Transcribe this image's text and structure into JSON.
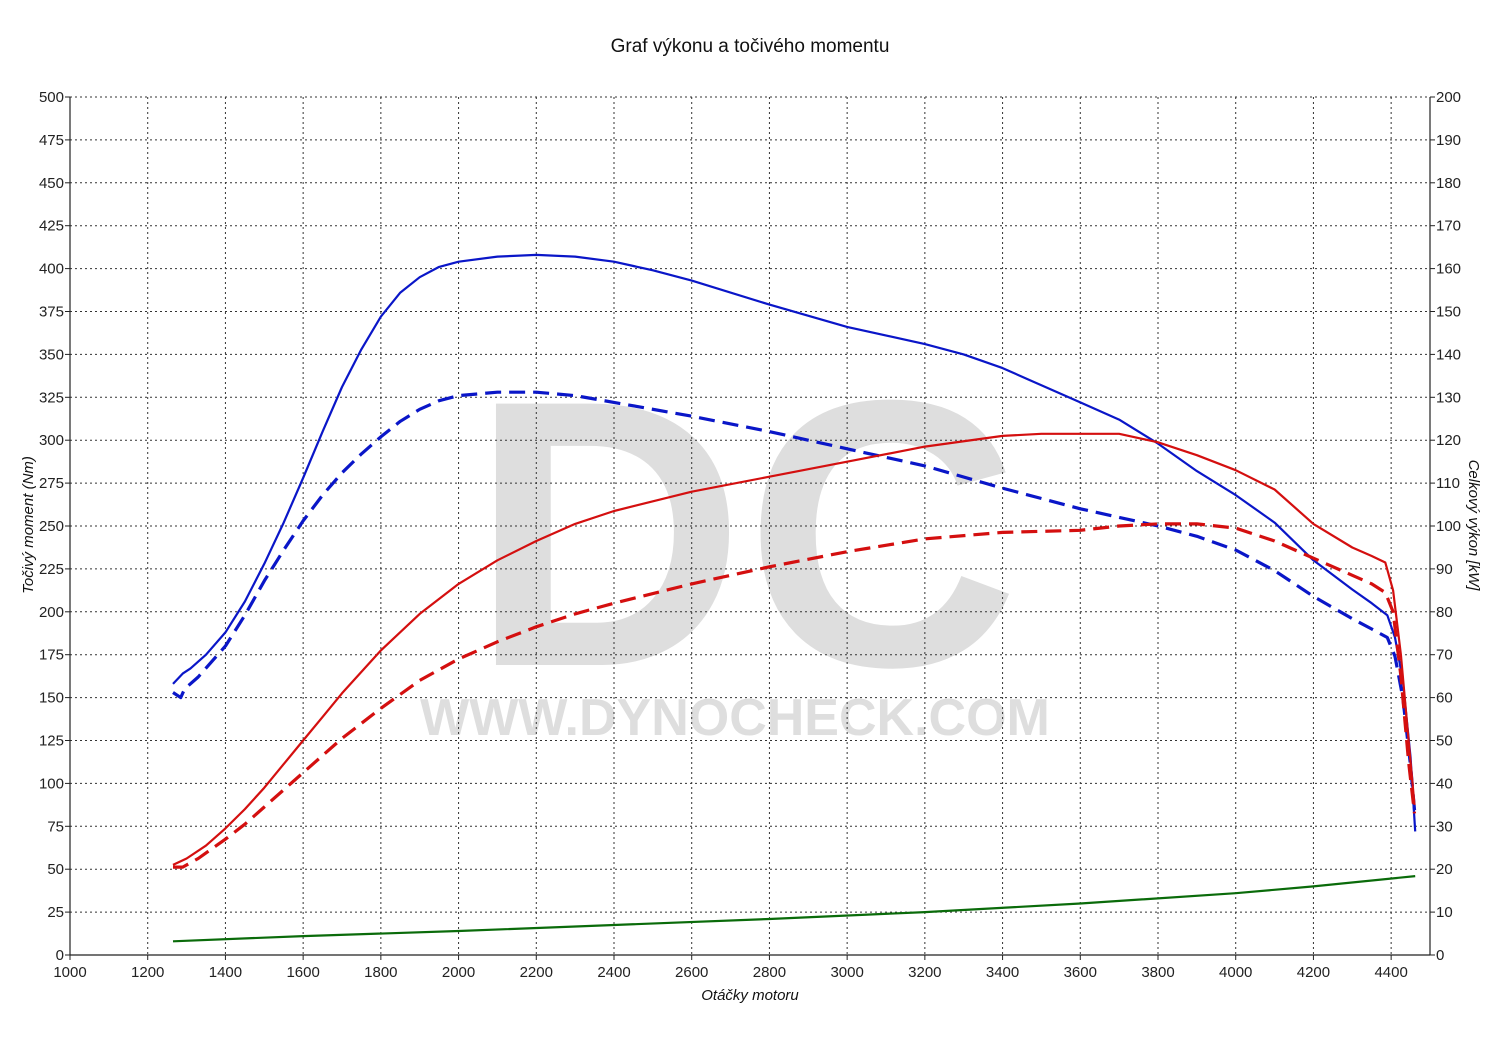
{
  "chart_data": {
    "type": "line",
    "title": "Graf výkonu a točivého momentu",
    "xlabel": "Otáčky motoru",
    "ylabel_left": "Točivý moment (Nm)",
    "ylabel_right": "Celkový výkon [kW]",
    "xlim": [
      1000,
      4500
    ],
    "ylim_left": [
      0,
      500
    ],
    "ylim_right": [
      0,
      200
    ],
    "x_ticks": [
      1000,
      1200,
      1400,
      1600,
      1800,
      2000,
      2200,
      2400,
      2600,
      2800,
      3000,
      3200,
      3400,
      3600,
      3800,
      4000,
      4200,
      4400
    ],
    "y_left_ticks": [
      0,
      25,
      50,
      75,
      100,
      125,
      150,
      175,
      200,
      225,
      250,
      275,
      300,
      325,
      350,
      375,
      400,
      425,
      450,
      475,
      500
    ],
    "y_right_ticks": [
      0,
      10,
      20,
      30,
      40,
      50,
      60,
      70,
      80,
      90,
      100,
      110,
      120,
      130,
      140,
      150,
      160,
      170,
      180,
      190,
      200
    ],
    "grid": true,
    "watermark": {
      "logo": "DC",
      "text": "WWW.DYNOCHECK.COM"
    },
    "series": [
      {
        "axis": "left",
        "color": "#0a16c8",
        "dash": false,
        "x": [
          1265,
          1290,
          1310,
          1350,
          1400,
          1450,
          1500,
          1550,
          1600,
          1650,
          1700,
          1750,
          1800,
          1850,
          1900,
          1950,
          2000,
          2100,
          2200,
          2300,
          2400,
          2500,
          2600,
          2800,
          3000,
          3200,
          3300,
          3400,
          3500,
          3600,
          3700,
          3800,
          3900,
          4000,
          4100,
          4200,
          4300,
          4350,
          4390,
          4410,
          4430,
          4450,
          4462
        ],
        "values": [
          158,
          164,
          167,
          175,
          188,
          206,
          228,
          252,
          278,
          305,
          331,
          353,
          372,
          386,
          395,
          401,
          404,
          407,
          408,
          407,
          404,
          399,
          393,
          379,
          366,
          356,
          350,
          342,
          332,
          322,
          312,
          298,
          282,
          268,
          252,
          230,
          213,
          205,
          198,
          185,
          160,
          115,
          72
        ]
      },
      {
        "axis": "left",
        "color": "#0a16c8",
        "dash": true,
        "x": [
          1265,
          1285,
          1295,
          1330,
          1400,
          1450,
          1500,
          1550,
          1600,
          1650,
          1700,
          1750,
          1800,
          1850,
          1900,
          1950,
          2000,
          2100,
          2200,
          2300,
          2400,
          2600,
          2800,
          3000,
          3200,
          3400,
          3600,
          3800,
          3900,
          4000,
          4100,
          4200,
          4300,
          4350,
          4390,
          4410,
          4430,
          4450,
          4462
        ],
        "values": [
          153,
          150,
          155,
          162,
          180,
          198,
          218,
          236,
          253,
          268,
          281,
          292,
          302,
          311,
          318,
          323,
          326,
          328,
          328,
          326,
          322,
          314,
          305,
          295,
          285,
          272,
          260,
          250,
          244,
          236,
          224,
          209,
          196,
          190,
          185,
          174,
          150,
          110,
          80
        ]
      },
      {
        "axis": "right",
        "color": "#d40f0f",
        "dash": false,
        "x": [
          1265,
          1300,
          1350,
          1400,
          1450,
          1500,
          1550,
          1600,
          1650,
          1700,
          1800,
          1900,
          2000,
          2100,
          2200,
          2300,
          2400,
          2600,
          2800,
          3000,
          3200,
          3400,
          3500,
          3600,
          3700,
          3800,
          3900,
          4000,
          4100,
          4200,
          4300,
          4350,
          4385,
          4405,
          4425,
          4445,
          4460
        ],
        "values": [
          21,
          22.5,
          25.5,
          29.5,
          34,
          39,
          44.5,
          50,
          55.5,
          61,
          71,
          79.5,
          86.5,
          92,
          96.5,
          100.5,
          103.5,
          108,
          111.5,
          115,
          118.5,
          121,
          121.5,
          121.5,
          121.5,
          119.5,
          116.5,
          113,
          108.5,
          100.5,
          95,
          93,
          91.5,
          85,
          70,
          50,
          35
        ]
      },
      {
        "axis": "right",
        "color": "#d40f0f",
        "dash": true,
        "x": [
          1265,
          1290,
          1330,
          1400,
          1450,
          1500,
          1550,
          1600,
          1650,
          1700,
          1800,
          1900,
          2000,
          2100,
          2200,
          2300,
          2400,
          2600,
          2800,
          3000,
          3200,
          3400,
          3600,
          3700,
          3800,
          3900,
          4000,
          4100,
          4200,
          4300,
          4350,
          4385,
          4405,
          4425,
          4445,
          4460
        ],
        "values": [
          20.5,
          20.5,
          22.5,
          27,
          30.5,
          34.5,
          38.5,
          42.5,
          46.5,
          50.5,
          57.5,
          64,
          69,
          73,
          76.5,
          79.5,
          82,
          86.5,
          90.5,
          94,
          97,
          98.5,
          99,
          100,
          100.5,
          100.5,
          99.5,
          96.5,
          92.5,
          88.5,
          86.5,
          84.5,
          80,
          65,
          45,
          33
        ]
      },
      {
        "axis": "left",
        "color": "#0a6b0a",
        "dash": false,
        "x": [
          1265,
          1600,
          2000,
          2400,
          2800,
          3200,
          3600,
          4000,
          4200,
          4462
        ],
        "values": [
          8,
          11,
          14,
          17.5,
          21,
          25,
          30,
          36,
          40,
          46
        ]
      }
    ]
  }
}
